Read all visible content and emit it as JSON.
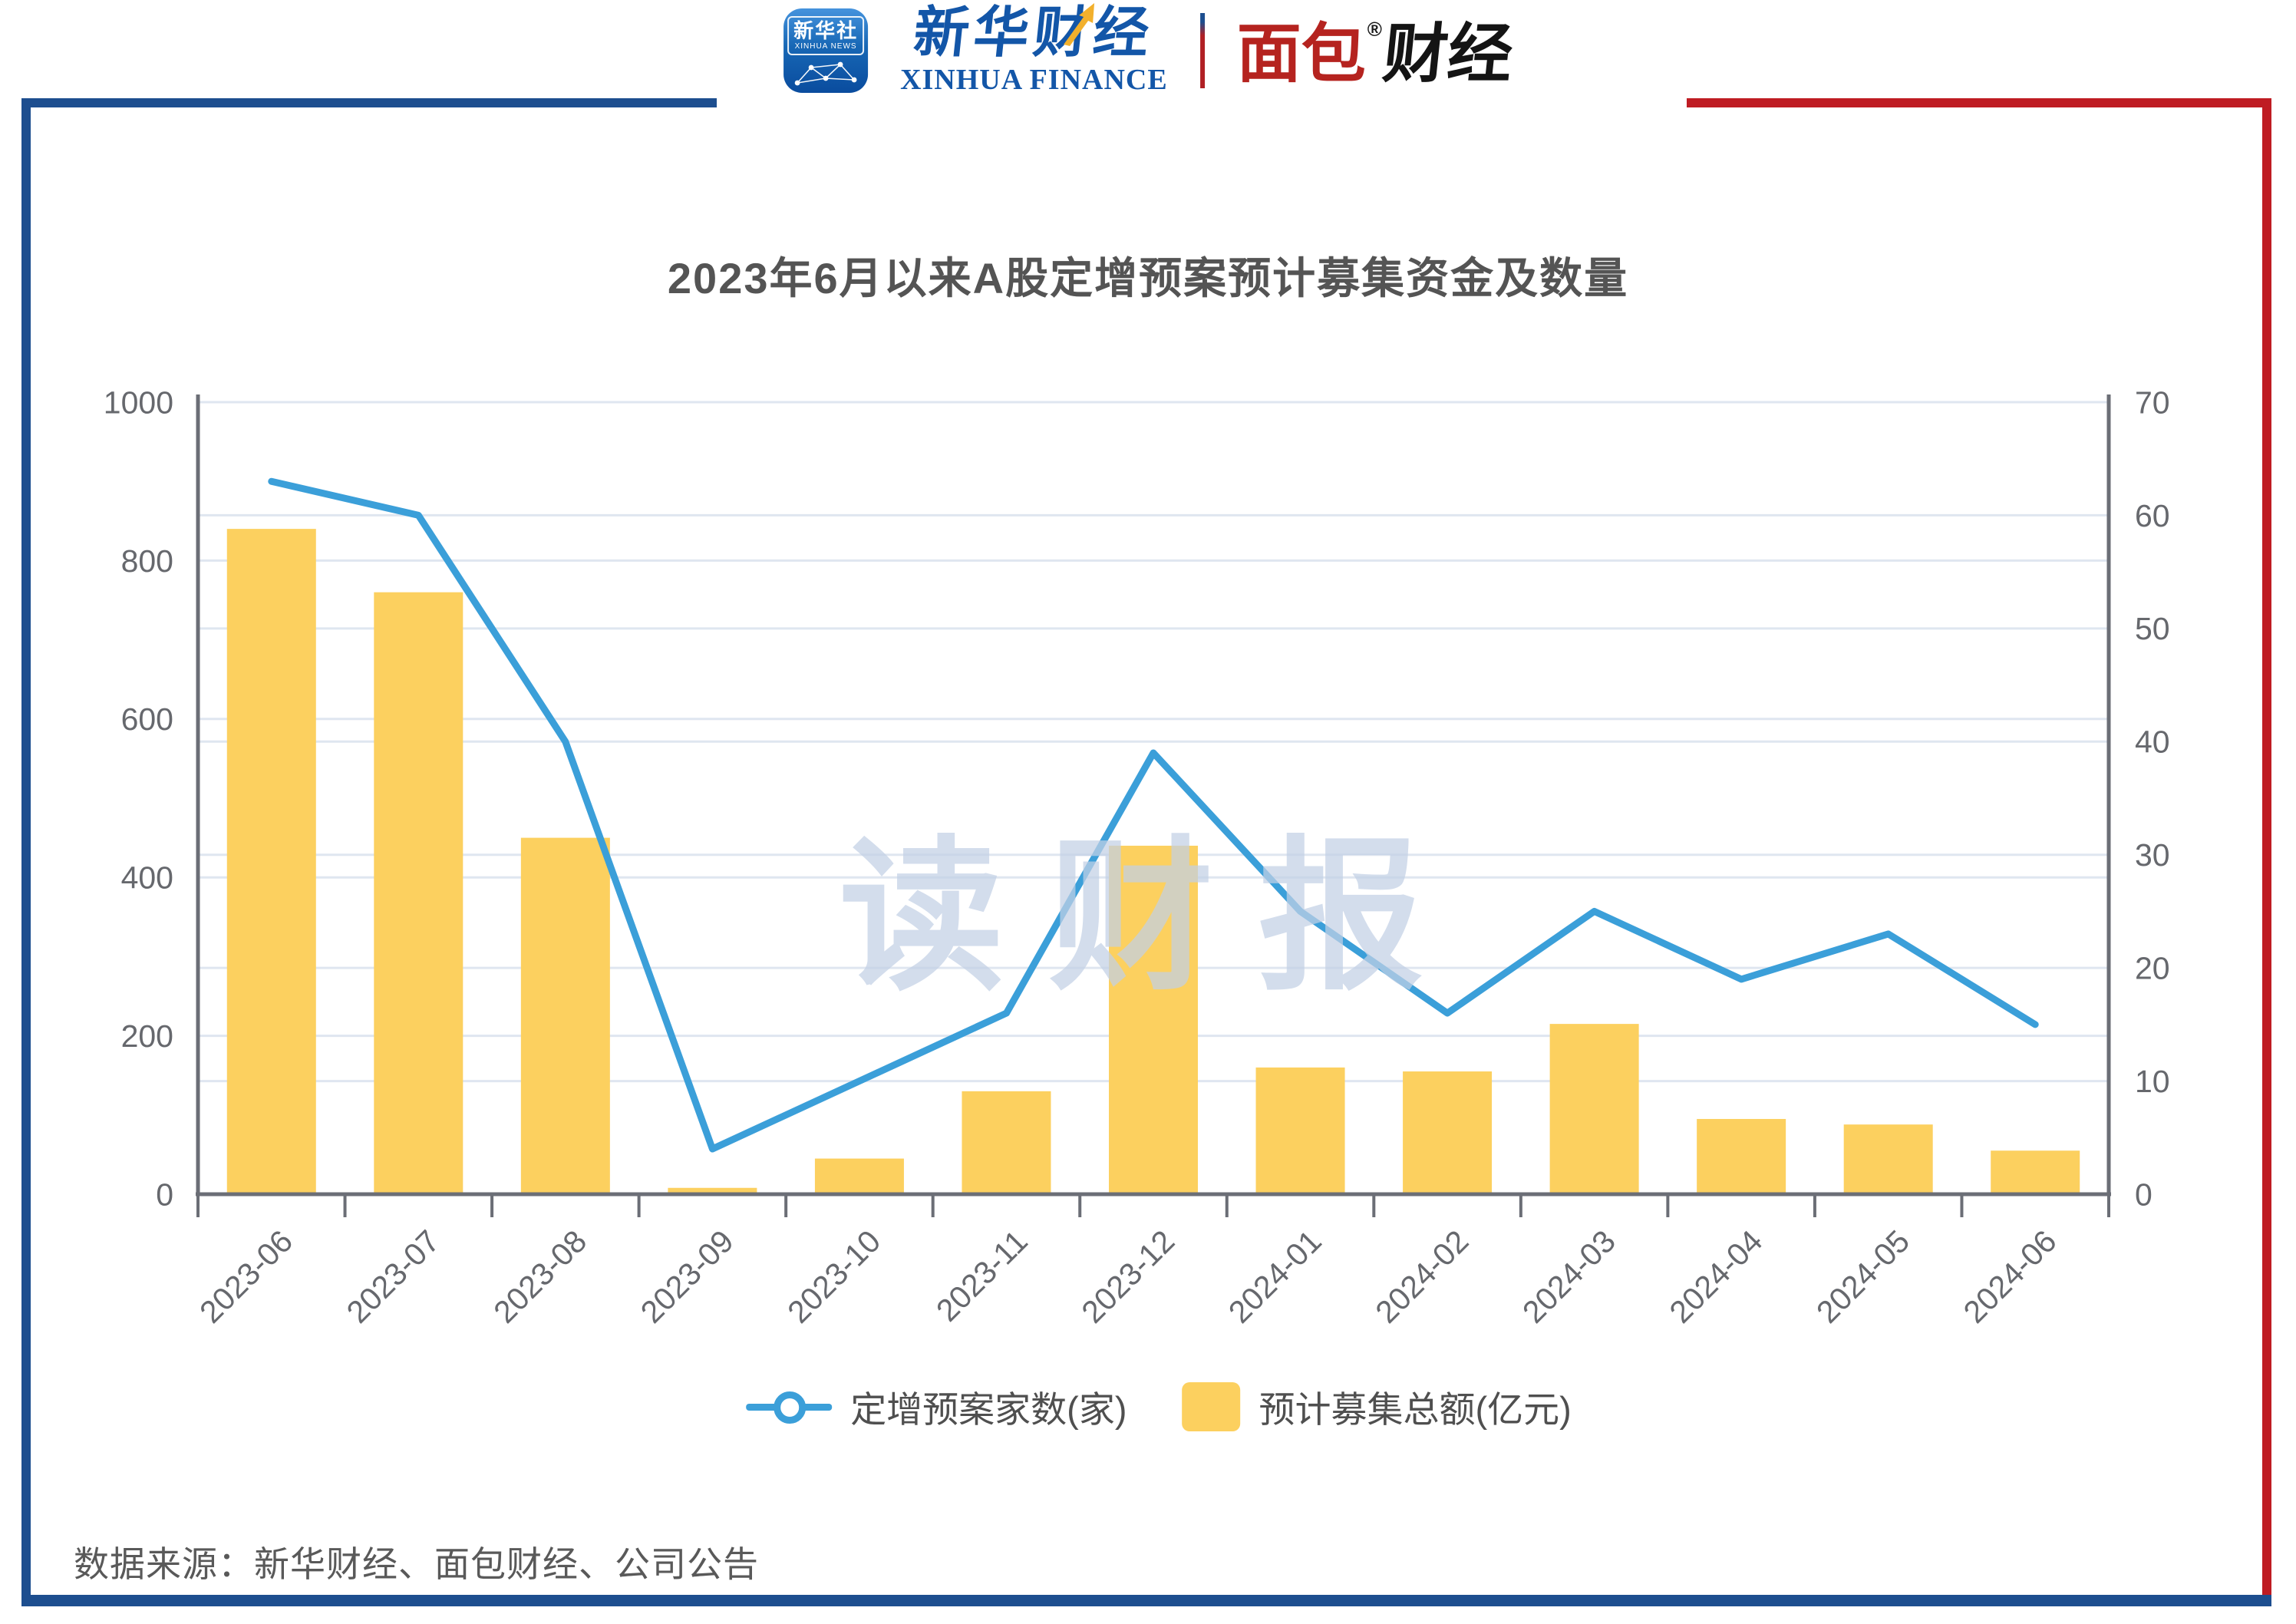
{
  "header": {
    "xinhua_app": {
      "name_cn": "新华社",
      "name_en": "XINHUA NEWS"
    },
    "xinhua_finance": {
      "name_cn": "新华财经",
      "name_en": "XINHUA FINANCE"
    },
    "bread_finance": {
      "part_red": "面包",
      "reg_mark": "®",
      "part_black": "财经"
    }
  },
  "watermark": "读财报",
  "footer": {
    "source": "数据来源：新华财经、面包财经、公司公告"
  },
  "colors": {
    "bar": "#fcd05f",
    "line": "#3b9fd9",
    "grid": "#dfe6f0",
    "axis": "#6b6e76",
    "tick_text": "#66686d",
    "frame_blue": "#1d4e8f",
    "frame_red": "#bf1c23"
  },
  "chart_data": {
    "type": "bar",
    "title": "2023年6月以来A股定增预案预计募集资金及数量",
    "categories": [
      "2023-06",
      "2023-07",
      "2023-08",
      "2023-09",
      "2023-10",
      "2023-11",
      "2023-12",
      "2024-01",
      "2024-02",
      "2024-03",
      "2024-04",
      "2024-05",
      "2024-06"
    ],
    "series": [
      {
        "name": "定增预案家数(家)",
        "type": "line",
        "y_axis": "right",
        "color": "#3b9fd9",
        "values": [
          63,
          60,
          40,
          4,
          10,
          16,
          39,
          25,
          16,
          25,
          19,
          23,
          15
        ]
      },
      {
        "name": "预计募集总额(亿元)",
        "type": "bar",
        "y_axis": "left",
        "color": "#fcd05f",
        "values": [
          840,
          760,
          450,
          8,
          45,
          130,
          440,
          160,
          155,
          215,
          95,
          88,
          55
        ]
      }
    ],
    "y_left": {
      "min": 0,
      "max": 1000,
      "step": 200
    },
    "y_right": {
      "min": 0,
      "max": 70,
      "step": 10
    },
    "grid": true,
    "legend_position": "bottom",
    "x_label_rotate": 45
  }
}
